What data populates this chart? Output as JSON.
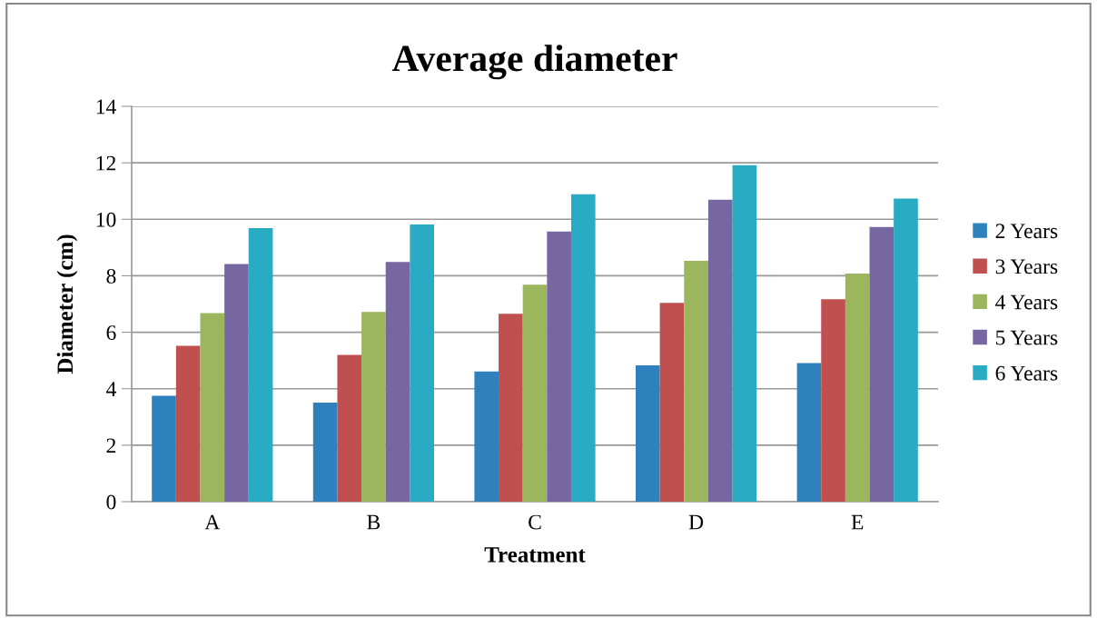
{
  "chart_data": {
    "type": "bar",
    "title": "Average diameter",
    "xlabel": "Treatment",
    "ylabel": "Diameter (cm)",
    "categories": [
      "A",
      "B",
      "C",
      "D",
      "E"
    ],
    "series": [
      {
        "name": "2 Years",
        "color": "#2e81bd",
        "values": [
          3.75,
          3.51,
          4.61,
          4.83,
          4.91
        ]
      },
      {
        "name": "3 Years",
        "color": "#c0504f",
        "values": [
          5.52,
          5.2,
          6.65,
          7.04,
          7.17
        ]
      },
      {
        "name": "4 Years",
        "color": "#9bb65c",
        "values": [
          6.68,
          6.72,
          7.68,
          8.53,
          8.08
        ]
      },
      {
        "name": "5 Years",
        "color": "#7667a2",
        "values": [
          8.42,
          8.49,
          9.57,
          10.69,
          9.73
        ]
      },
      {
        "name": "6 Years",
        "color": "#29abc3",
        "values": [
          9.69,
          9.82,
          10.89,
          11.92,
          10.73
        ]
      }
    ],
    "ylim": [
      0,
      14
    ],
    "yticks": [
      0,
      2,
      4,
      6,
      8,
      10,
      12,
      14
    ],
    "grid": "y",
    "legend": "right"
  }
}
